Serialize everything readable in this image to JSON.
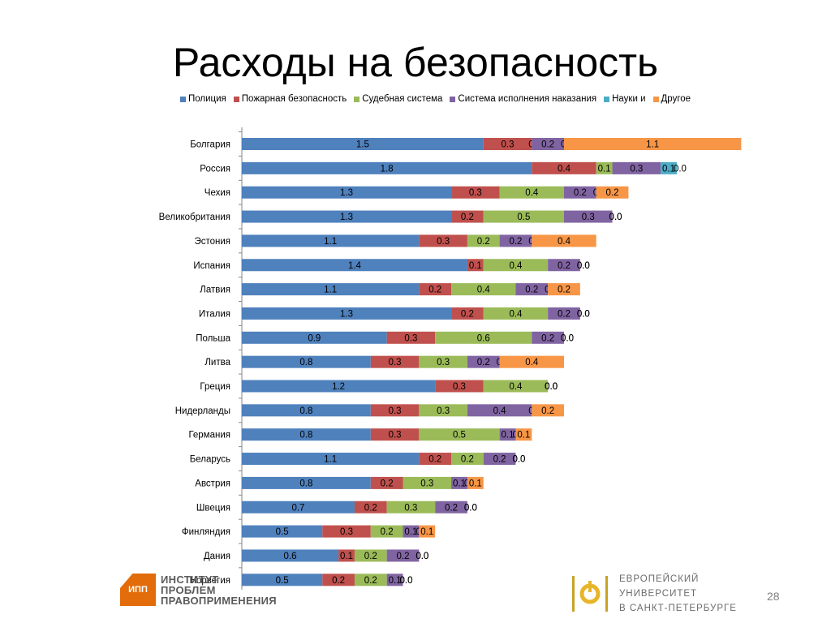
{
  "slide": {
    "title": "Расходы на безопасность",
    "page_number": "28"
  },
  "logos": {
    "left_badge": "ИПП",
    "left_lines": [
      "ИНСТИТУТ",
      "ПРОБЛЕМ",
      "ПРАВОПРИМЕНЕНИЯ"
    ],
    "right_lines": [
      "ЕВРОПЕЙСКИЙ",
      "УНИВЕРСИТЕТ",
      "В САНКТ-ПЕТЕРБУРГЕ"
    ]
  },
  "chart_data": {
    "type": "bar",
    "orientation": "horizontal",
    "stacked": true,
    "title": "",
    "xlabel": "",
    "ylabel": "",
    "legend_position": "top",
    "grid": false,
    "categories": [
      "Болгария",
      "Россия",
      "Чехия",
      "Великобритания",
      "Эстония",
      "Испания",
      "Латвия",
      "Италия",
      "Польша",
      "Литва",
      "Греция",
      "Нидерланды",
      "Германия",
      "Беларусь",
      "Австрия",
      "Швеция",
      "Финляндия",
      "Дания",
      "Норвегия"
    ],
    "series": [
      {
        "name": "Полиция",
        "color": "#4f81bd",
        "values": [
          1.5,
          1.8,
          1.3,
          1.3,
          1.1,
          1.4,
          1.1,
          1.3,
          0.9,
          0.8,
          1.2,
          0.8,
          0.8,
          1.1,
          0.8,
          0.7,
          0.5,
          0.6,
          0.5
        ]
      },
      {
        "name": "Пожарная безопасность",
        "color": "#c0504d",
        "values": [
          0.3,
          0.4,
          0.3,
          0.2,
          0.3,
          0.1,
          0.2,
          0.2,
          0.3,
          0.3,
          0.3,
          0.3,
          0.3,
          0.2,
          0.2,
          0.2,
          0.3,
          0.1,
          0.2
        ]
      },
      {
        "name": "Судебная система",
        "color": "#9bbb59",
        "values": [
          0.0,
          0.1,
          0.4,
          0.5,
          0.2,
          0.4,
          0.4,
          0.4,
          0.6,
          0.3,
          0.4,
          0.3,
          0.5,
          0.2,
          0.3,
          0.3,
          0.2,
          0.2,
          0.2
        ]
      },
      {
        "name": "Система исполнения наказания",
        "color": "#8064a2",
        "values": [
          0.2,
          0.3,
          0.2,
          0.3,
          0.2,
          0.2,
          0.2,
          0.2,
          0.2,
          0.2,
          0.0,
          0.4,
          0.1,
          0.2,
          0.1,
          0.2,
          0.1,
          0.2,
          0.1
        ]
      },
      {
        "name": "Науки и",
        "color": "#4bacc6",
        "values": [
          0.0,
          0.1,
          0.0,
          0.0,
          0.0,
          0.0,
          0.0,
          0.0,
          0.0,
          0.0,
          0.0,
          0.0,
          0.0,
          0.0,
          0.0,
          0.0,
          0.0,
          0.0,
          0.0
        ]
      },
      {
        "name": "Другое",
        "color": "#f79646",
        "values": [
          1.1,
          0.0,
          0.2,
          0.0,
          0.4,
          0.0,
          0.2,
          0.0,
          0.0,
          0.4,
          0.0,
          0.2,
          0.1,
          0.0,
          0.1,
          0.0,
          0.1,
          0.0,
          0.0
        ]
      }
    ],
    "value_labels": [
      [
        "1.5",
        "0.3",
        "0.0",
        "0.2",
        "0.0",
        "1.1"
      ],
      [
        "1.8",
        "0.4",
        "0.1",
        "0.3",
        "0.1",
        "0.0"
      ],
      [
        "1.3",
        "0.3",
        "0.4",
        "0.2",
        "0.0",
        "0.2"
      ],
      [
        "1.3",
        "0.2",
        "0.5",
        "0.3",
        "0.0",
        "0.0"
      ],
      [
        "1.1",
        "0.3",
        "0.2",
        "0.2",
        "0.0",
        "0.4"
      ],
      [
        "1.4",
        "0.1",
        "0.4",
        "0.2",
        "0.0",
        "0.0"
      ],
      [
        "1.1",
        "0.2",
        "0.4",
        "0.2",
        "0.0",
        "0.2"
      ],
      [
        "1.3",
        "0.2",
        "0.4",
        "0.2",
        "0.0",
        "0.0"
      ],
      [
        "0.9",
        "0.3",
        "0.6",
        "0.2",
        "0.0",
        "0.0"
      ],
      [
        "0.8",
        "0.3",
        "0.3",
        "0.2",
        "0.0",
        "0.4"
      ],
      [
        "1.2",
        "0.3",
        "0.4",
        "0.0",
        "0.0",
        "0.0"
      ],
      [
        "0.8",
        "0.3",
        "0.3",
        "0.4",
        "0.0",
        "0.2"
      ],
      [
        "0.8",
        "0.3",
        "0.5",
        "0.1",
        "0.0",
        "0.1"
      ],
      [
        "1.1",
        "0.2",
        "0.2",
        "0.2",
        "0.0",
        "0.0"
      ],
      [
        "0.8",
        "0.2",
        "0.3",
        "0.1",
        "0.0",
        "0.1"
      ],
      [
        "0.7",
        "0.2",
        "0.3",
        "0.2",
        "0.0",
        "0.0"
      ],
      [
        "0.5",
        "0.3",
        "0.2",
        "0.1",
        "0.0",
        "0.1"
      ],
      [
        "0.6",
        "0.1",
        "0.2",
        "0.2",
        "0.0",
        "0.0"
      ],
      [
        "0.5",
        "0.2",
        "0.2",
        "0.1",
        "0.0",
        "0.0"
      ]
    ]
  }
}
